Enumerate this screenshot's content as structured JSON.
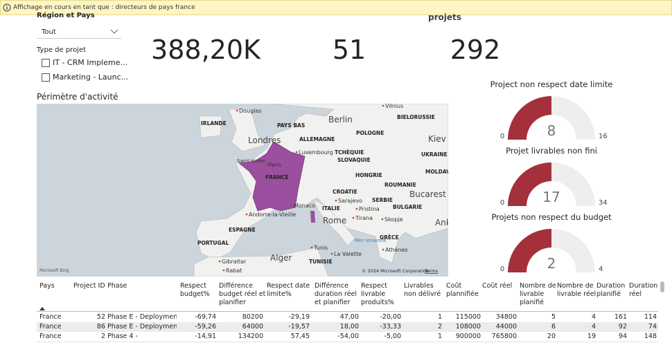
{
  "banner": {
    "text": "Affichage en cours en tant que : directeurs de pays france"
  },
  "slicers": {
    "region_label": "Région et Pays",
    "region_value": "Tout",
    "type_label": "Type de projet",
    "type_options": [
      "IT - CRM Impleme...",
      "Marketing - Launc..."
    ]
  },
  "kpis": {
    "caption": "projets",
    "values": [
      "388,20K",
      "51",
      "292"
    ]
  },
  "map": {
    "title": "Périmètre d'activité",
    "labels": [
      "Douglas",
      "IRLANDE",
      "PAYS BAS",
      "Berlin",
      "POLOGNE",
      "Vilnius",
      "BIELORUSSIE",
      "Londres",
      "ALLEMAGNE",
      "Luxembourg",
      "TCHÉQUIE",
      "Kiev",
      "Saint-Helier",
      "SLOVAQUIE",
      "UKRAINE",
      "Paris",
      "FRANCE",
      "HONGRIE",
      "MOLDAVIE",
      "ROUMANIE",
      "CROATIE",
      "Sarajevo",
      "SERBIE",
      "Bucarest",
      "Monaco",
      "ITALIE",
      "Pristina",
      "BULGARIE",
      "Andorre-la-Vieille",
      "Rome",
      "Tirana",
      "Skopje",
      "ESPAGNE",
      "Ank",
      "Mer Ionienne",
      "GRÈCE",
      "PORTUGAL",
      "Athènes",
      "Tunis",
      "La Valette",
      "Alger",
      "TUNISIE",
      "Gibraltar",
      "Rabat"
    ],
    "copyright": "© 2024 Microsoft Corporation",
    "terms": "Terms",
    "logo": "Microsoft Bing"
  },
  "gauges": [
    {
      "title": "Project non respect date limite",
      "value": 8,
      "min": 0,
      "max": 16
    },
    {
      "title": "Projet livrables non fini",
      "value": 17,
      "min": 0,
      "max": 34
    },
    {
      "title": "Projets non respect du budget",
      "value": 2,
      "min": 0,
      "max": 4
    }
  ],
  "table": {
    "columns": [
      "Pays",
      "Project ID",
      "Phase",
      "Respect budget%",
      "Différence budget réel et planifier",
      "Respect date limite%",
      "Différence duration réel et planifier",
      "Respect livrable produits%",
      "Livrables non délivré",
      "Coût plannifiée",
      "Coût réel",
      "Nombre de livrable planifié",
      "Nombre de livrable réel",
      "Duration planifié",
      "Duration réel"
    ],
    "rows": [
      [
        "France",
        "52",
        "Phase E - Deployment",
        "-69,74",
        "80200",
        "-29,19",
        "47,00",
        "-20,00",
        "1",
        "115000",
        "34800",
        "5",
        "4",
        "161",
        "114"
      ],
      [
        "France",
        "86",
        "Phase E - Deployment",
        "-59,26",
        "64000",
        "-19,57",
        "18,00",
        "-33,33",
        "2",
        "108000",
        "44000",
        "6",
        "4",
        "92",
        "74"
      ],
      [
        "France",
        "2",
        "Phase 4 -",
        "-14,91",
        "134200",
        "57,45",
        "-54,00",
        "-5,00",
        "1",
        "900000",
        "765800",
        "20",
        "19",
        "94",
        "148"
      ]
    ]
  }
}
